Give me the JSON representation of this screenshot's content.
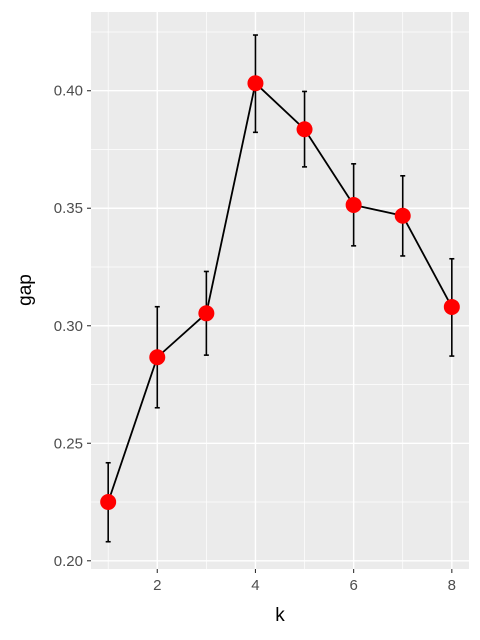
{
  "chart_data": {
    "type": "line",
    "title": "",
    "xlabel": "k",
    "ylabel": "gap",
    "x": [
      1,
      2,
      3,
      4,
      5,
      6,
      7,
      8
    ],
    "series": [
      {
        "values": [
          0.225,
          0.2866,
          0.3053,
          0.4032,
          0.3836,
          0.3514,
          0.3468,
          0.308
        ],
        "error_low": [
          0.2081,
          0.2651,
          0.2875,
          0.3823,
          0.3676,
          0.334,
          0.3297,
          0.2871
        ],
        "error_high": [
          0.2417,
          0.3081,
          0.3231,
          0.4237,
          0.3997,
          0.3689,
          0.3638,
          0.3285
        ]
      }
    ],
    "xlim": [
      0.65,
      8.35
    ],
    "ylim": [
      0.1965,
      0.4335
    ],
    "x_ticks": [
      2,
      4,
      6,
      8
    ],
    "y_ticks": [
      0.2,
      0.25,
      0.3,
      0.35,
      0.4
    ],
    "x_tick_labels": [
      "2",
      "4",
      "6",
      "8"
    ],
    "y_tick_labels": [
      "0.20",
      "0.25",
      "0.30",
      "0.35",
      "0.40"
    ],
    "grid": true,
    "legend": "none",
    "colors": {
      "panel": "#ebebeb",
      "grid": "#ffffff",
      "line": "#000000",
      "point": "#ff0000"
    }
  }
}
